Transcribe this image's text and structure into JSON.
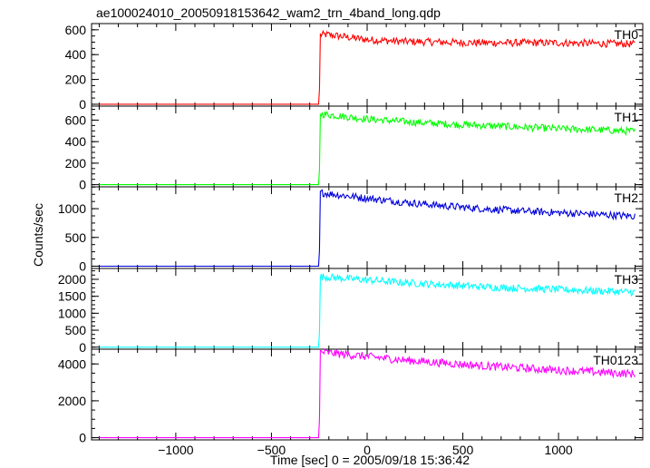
{
  "figure": {
    "title": "ae100024010_20050918153642_wam2_trn_4band_long.qdp",
    "ylabel": "Counts/sec",
    "xlabel": "Time [sec] 0 = 2005/09/18 15:36:42"
  },
  "chart_data": [
    {
      "type": "line",
      "series": [
        {
          "name": "TH0",
          "color": "#ff0000"
        }
      ],
      "xlim": [
        -1440,
        1440
      ],
      "ylim": [
        -15,
        650
      ],
      "yticks": [
        0,
        200,
        400,
        600
      ],
      "xticks": [
        -1000,
        -500,
        0,
        500,
        1000
      ],
      "points": [
        [
          -1400,
          0
        ],
        [
          -250,
          0
        ],
        [
          -245,
          560
        ],
        [
          -200,
          560
        ],
        [
          -100,
          540
        ],
        [
          0,
          520
        ],
        [
          200,
          505
        ],
        [
          400,
          500
        ],
        [
          600,
          495
        ],
        [
          800,
          495
        ],
        [
          1000,
          495
        ],
        [
          1200,
          490
        ],
        [
          1400,
          485
        ]
      ]
    },
    {
      "type": "line",
      "series": [
        {
          "name": "TH1",
          "color": "#00ff00"
        }
      ],
      "xlim": [
        -1440,
        1440
      ],
      "ylim": [
        -20,
        730
      ],
      "yticks": [
        0,
        200,
        400,
        600
      ],
      "xticks": [
        -1000,
        -500,
        0,
        500,
        1000
      ],
      "points": [
        [
          -1400,
          0
        ],
        [
          -250,
          0
        ],
        [
          -245,
          660
        ],
        [
          -200,
          650
        ],
        [
          0,
          610
        ],
        [
          200,
          585
        ],
        [
          400,
          565
        ],
        [
          600,
          550
        ],
        [
          800,
          535
        ],
        [
          1000,
          520
        ],
        [
          1200,
          510
        ],
        [
          1400,
          495
        ]
      ]
    },
    {
      "type": "line",
      "series": [
        {
          "name": "TH2",
          "color": "#0000dd"
        }
      ],
      "xlim": [
        -1440,
        1440
      ],
      "ylim": [
        -40,
        1380
      ],
      "yticks": [
        0,
        500,
        1000
      ],
      "xticks": [
        -1000,
        -500,
        0,
        500,
        1000
      ],
      "points": [
        [
          -1400,
          0
        ],
        [
          -250,
          0
        ],
        [
          -245,
          1280
        ],
        [
          -200,
          1260
        ],
        [
          0,
          1180
        ],
        [
          200,
          1110
        ],
        [
          400,
          1050
        ],
        [
          600,
          1000
        ],
        [
          800,
          960
        ],
        [
          1000,
          930
        ],
        [
          1200,
          900
        ],
        [
          1400,
          870
        ]
      ]
    },
    {
      "type": "line",
      "series": [
        {
          "name": "TH3",
          "color": "#00ffff"
        }
      ],
      "xlim": [
        -1440,
        1440
      ],
      "ylim": [
        -60,
        2320
      ],
      "yticks": [
        0,
        500,
        1000,
        1500,
        2000
      ],
      "xticks": [
        -1000,
        -500,
        0,
        500,
        1000
      ],
      "points": [
        [
          -1400,
          0
        ],
        [
          -250,
          0
        ],
        [
          -245,
          2080
        ],
        [
          -200,
          2060
        ],
        [
          0,
          1980
        ],
        [
          200,
          1900
        ],
        [
          400,
          1840
        ],
        [
          600,
          1780
        ],
        [
          800,
          1740
        ],
        [
          1000,
          1700
        ],
        [
          1200,
          1660
        ],
        [
          1400,
          1620
        ]
      ]
    },
    {
      "type": "line",
      "series": [
        {
          "name": "TH0123",
          "color": "#ff00ff"
        }
      ],
      "xlim": [
        -1440,
        1440
      ],
      "ylim": [
        -120,
        4800
      ],
      "yticks": [
        0,
        2000,
        4000
      ],
      "xticks": [
        -1000,
        -500,
        0,
        500,
        1000
      ],
      "xticklabels": [
        "−1000",
        "−500",
        "0",
        "500",
        "1000"
      ],
      "points": [
        [
          -1400,
          0
        ],
        [
          -250,
          0
        ],
        [
          -245,
          4650
        ],
        [
          -200,
          4600
        ],
        [
          0,
          4400
        ],
        [
          200,
          4200
        ],
        [
          400,
          4050
        ],
        [
          600,
          3900
        ],
        [
          800,
          3780
        ],
        [
          1000,
          3660
        ],
        [
          1200,
          3560
        ],
        [
          1400,
          3450
        ]
      ]
    }
  ]
}
